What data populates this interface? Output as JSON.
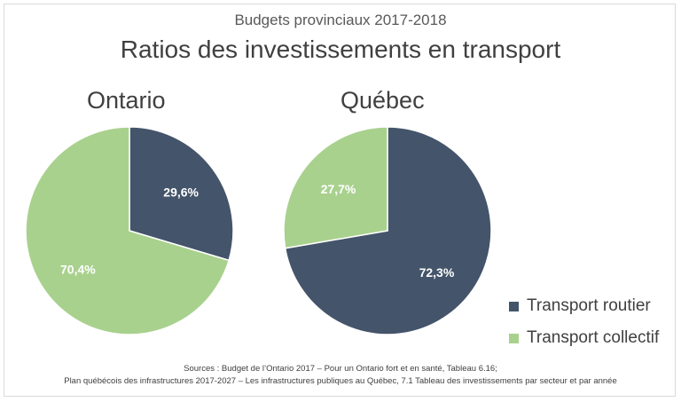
{
  "colors": {
    "transport_routier": "#44546a",
    "transport_collectif": "#a9d18e",
    "slice_label": "#ffffff"
  },
  "chart_data": {
    "type": "pie",
    "subtitle": "Budgets provinciaux 2017-2018",
    "title": "Ratios des investissements en transport",
    "legend": [
      "Transport routier",
      "Transport collectif"
    ],
    "legend_position": "bottom-right",
    "charts": [
      {
        "title": "Ontario",
        "slices": [
          {
            "name": "Transport routier",
            "value": 29.6,
            "label": "29,6%"
          },
          {
            "name": "Transport collectif",
            "value": 70.4,
            "label": "70,4%"
          }
        ]
      },
      {
        "title": "Québec",
        "slices": [
          {
            "name": "Transport routier",
            "value": 72.3,
            "label": "72,3%"
          },
          {
            "name": "Transport collectif",
            "value": 27.7,
            "label": "27,7%"
          }
        ]
      }
    ]
  },
  "sources": {
    "line1": "Sources : Budget de l’Ontario 2017 – Pour un Ontario fort et en santé, Tableau 6.16;",
    "line2": "Plan québécois des infrastructures 2017-2027 – Les infrastructures publiques au Québec, 7.1  Tableau des investissements par secteur et par année"
  }
}
